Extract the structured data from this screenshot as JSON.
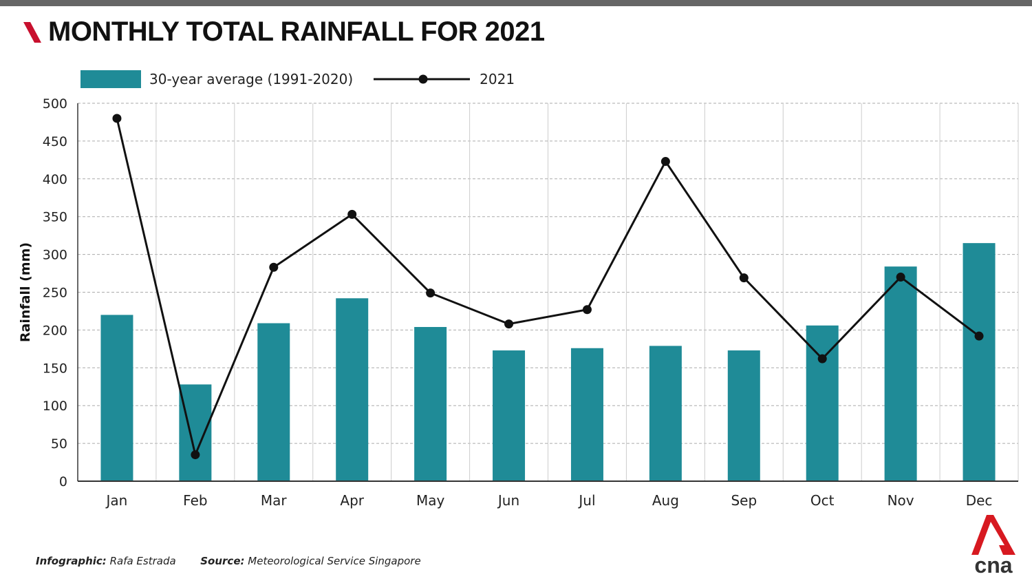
{
  "title": "MONTHLY TOTAL RAINFALL FOR 2021",
  "footer": {
    "infographic_label": "Infographic:",
    "infographic_value": "Rafa Estrada",
    "source_label": "Source:",
    "source_value": "Meteorological Service Singapore"
  },
  "logo_text": "cna",
  "colors": {
    "bar": "#1f8b97",
    "line": "#111111",
    "accent": "#c8102e"
  },
  "chart_data": {
    "type": "bar+line",
    "title": "MONTHLY TOTAL RAINFALL FOR 2021",
    "xlabel": "",
    "ylabel": "Rainfall (mm)",
    "ylim": [
      0,
      500
    ],
    "yticks": [
      0,
      50,
      100,
      150,
      200,
      250,
      300,
      350,
      400,
      450,
      500
    ],
    "grid": true,
    "legend": "top-left",
    "categories": [
      "Jan",
      "Feb",
      "Mar",
      "Apr",
      "May",
      "Jun",
      "Jul",
      "Aug",
      "Sep",
      "Oct",
      "Nov",
      "Dec"
    ],
    "series": [
      {
        "name": "30-year average (1991-2020)",
        "type": "bar",
        "values": [
          220,
          128,
          209,
          242,
          204,
          173,
          176,
          179,
          173,
          206,
          284,
          315
        ]
      },
      {
        "name": "2021",
        "type": "line",
        "values": [
          480,
          35,
          283,
          353,
          249,
          208,
          227,
          423,
          269,
          162,
          270,
          192
        ]
      }
    ]
  }
}
